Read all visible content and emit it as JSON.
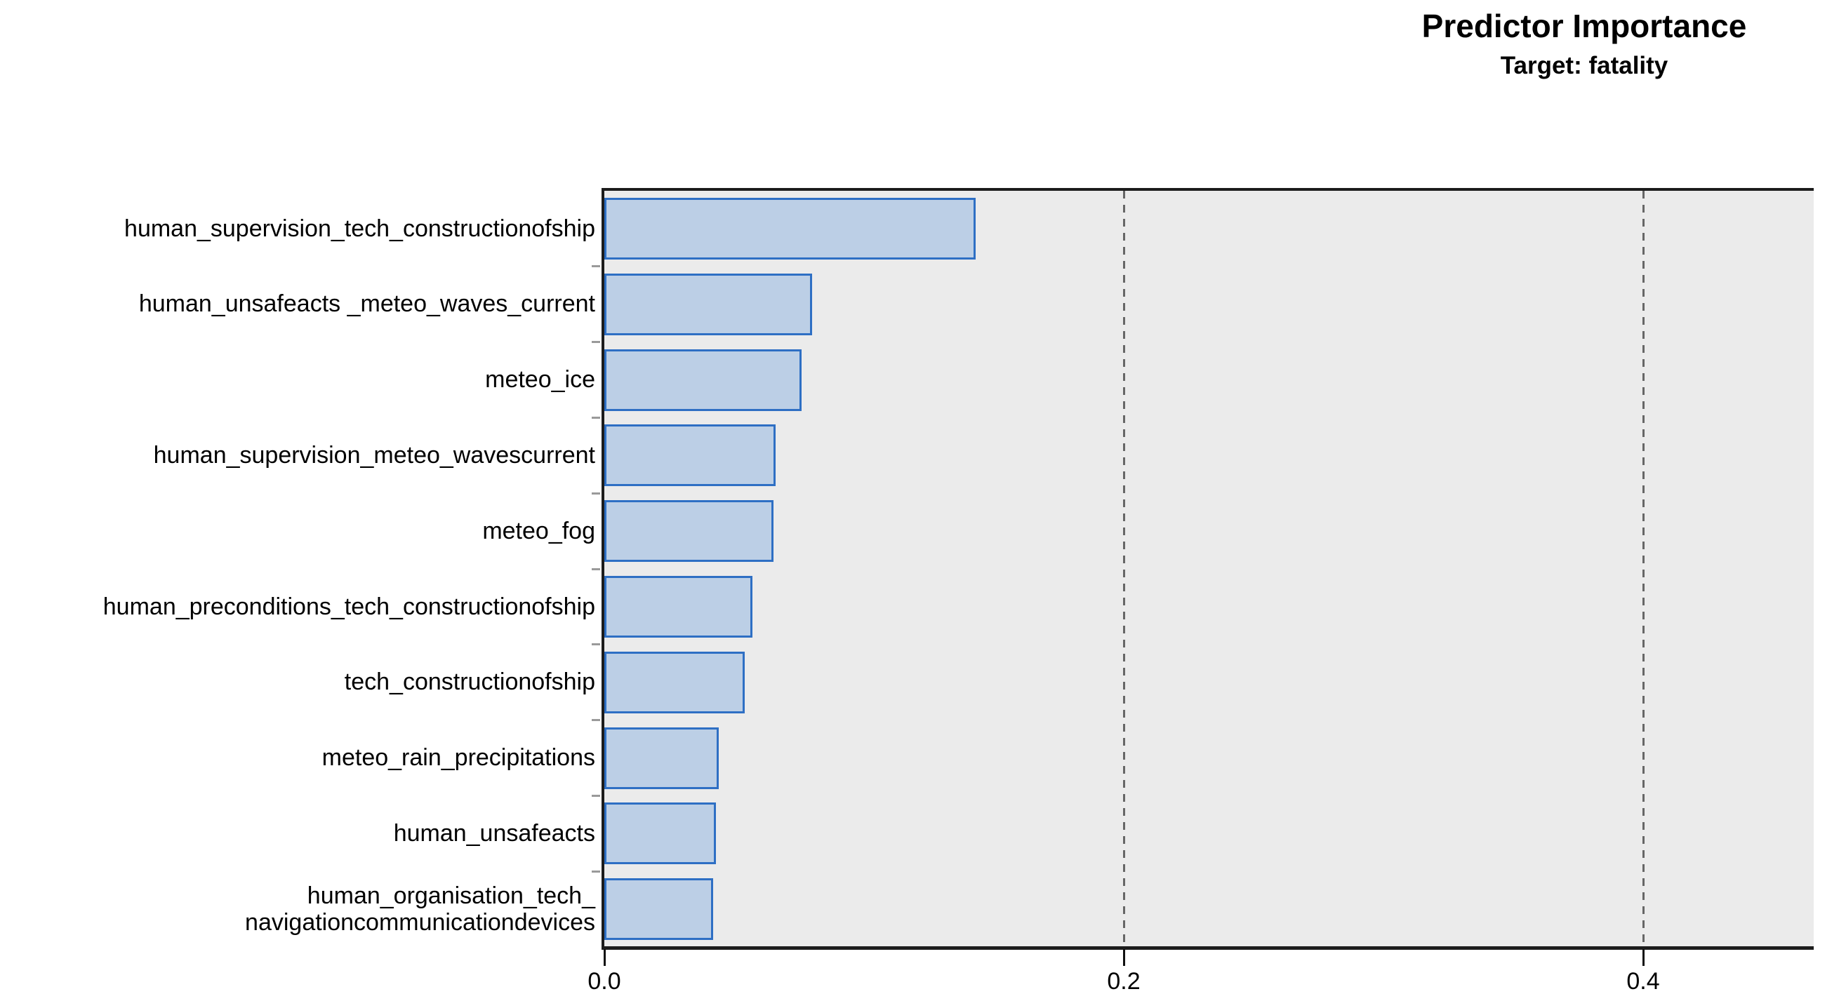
{
  "header": {
    "title": "Predictor Importance",
    "subtitle": "Target: fatality"
  },
  "chart_data": {
    "type": "bar",
    "orientation": "horizontal",
    "title": "Predictor Importance",
    "subtitle": "Target: fatality",
    "xlabel": "",
    "ylabel": "",
    "categories": [
      "human_supervision_tech_constructionofship",
      "human_unsafeacts _meteo_waves_current",
      "meteo_ice",
      "human_supervision_meteo_wavescurrent",
      "meteo_fog",
      "human_preconditions_tech_constructionofship",
      "tech_constructionofship",
      "meteo_rain_precipitations",
      "human_unsafeacts",
      "human_organisation_tech_\nnavigationcommunicationdevices"
    ],
    "values": [
      0.143,
      0.08,
      0.076,
      0.066,
      0.065,
      0.057,
      0.054,
      0.044,
      0.043,
      0.042
    ],
    "x_ticks": [
      0.0,
      0.2,
      0.4
    ],
    "x_tick_labels": [
      "0.0",
      "0.2",
      "0.4"
    ],
    "xlim": [
      0,
      0.466
    ],
    "grid": "vertical dashed gridlines at non-zero x ticks",
    "legend": "none",
    "colors": {
      "bar_fill": "#bccfe6",
      "bar_border": "#2e6fc4",
      "plot_background": "#ebebeb",
      "gridline": "#666666",
      "axis": "#1c1c1c",
      "text": "#000000"
    }
  }
}
